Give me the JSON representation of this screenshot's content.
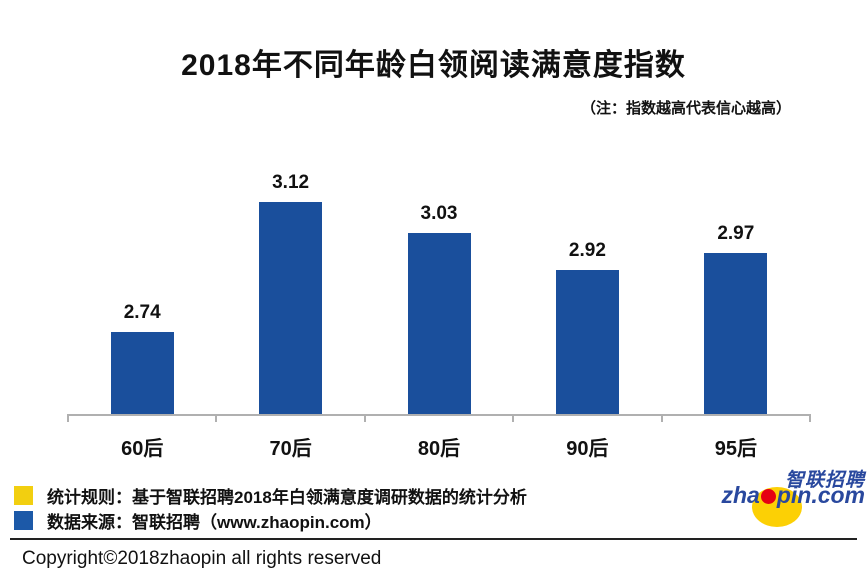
{
  "title": "2018年不同年龄白领阅读满意度指数",
  "subtitle": "（注：指数越高代表信心越高）",
  "chart_data": {
    "type": "bar",
    "categories": [
      "60后",
      "70后",
      "80后",
      "90后",
      "95后"
    ],
    "values": [
      2.74,
      3.12,
      3.03,
      2.92,
      2.97
    ],
    "title": "2018年不同年龄白领阅读满意度指数",
    "xlabel": "",
    "ylabel": "",
    "ylim": [
      2.5,
      3.27
    ],
    "grid": false,
    "legend_position": "none",
    "bar_color": "#1a4f9c",
    "axis_color": "#b0b0b0"
  },
  "legend": {
    "items": [
      {
        "color": "#f2cf10",
        "label": "统计规则：基于智联招聘2018年白领满意度调研数据的统计分析"
      },
      {
        "color": "#1c59a8",
        "label": "数据来源：智联招聘（www.zhaopin.com）"
      }
    ]
  },
  "footer": {
    "copyright": "Copyright©2018zhaopin all rights reserved"
  },
  "logo": {
    "cn_text": "智联招聘",
    "domain_prefix": "zha",
    "domain_suffix": "pin.com",
    "blue": "#29489e",
    "yellow": "#fcd005",
    "red": "#e60012"
  }
}
